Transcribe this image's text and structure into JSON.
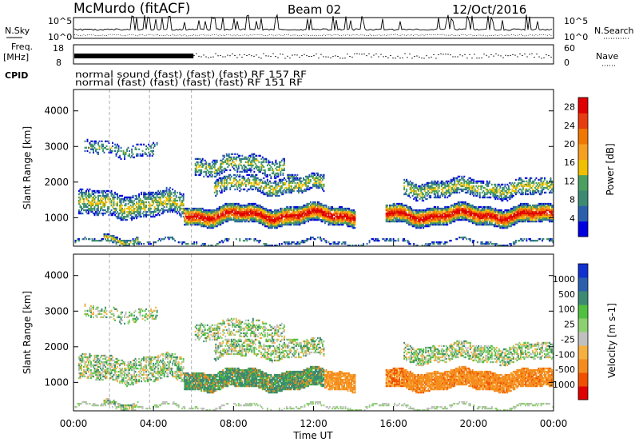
{
  "header": {
    "station": "McMurdo (fitACF)",
    "beam": "Beam 02",
    "date": "12/Oct/2016"
  },
  "strip": {
    "nsky_label": "N.Sky",
    "nsearch_label": "N.Search",
    "nsky_ticks": [
      "10^5",
      "10^0"
    ],
    "freq_label": "Freq.",
    "freq_unit": "[MHz]",
    "freq_ticks": [
      "18",
      "8"
    ],
    "nave_label": "Nave",
    "nave_ticks": [
      "60",
      "0"
    ],
    "cpid_label": "CPID",
    "cpid_line1": "normal sound (fast) (fast) (fast) RF 157 RF",
    "cpid_line2": "normal (fast) (fast) (fast) (fast) RF 151 RF"
  },
  "colors": {
    "power_scale": [
      "#0000e0",
      "#2b5fae",
      "#3c8a72",
      "#4aa060",
      "#f0c000",
      "#f5a020",
      "#f07800",
      "#e83c10",
      "#e00000"
    ],
    "velocity_scale": [
      "#e00000",
      "#f05000",
      "#f58c1e",
      "#f5b040",
      "#c0c0c0",
      "#8cd070",
      "#50c040",
      "#3c8a72",
      "#2b5fae",
      "#1030d0"
    ]
  },
  "chart_data": [
    {
      "type": "heatmap",
      "panel": "power",
      "ylabel": "Slant Range [km]",
      "xlabel": "Time UT",
      "x_ticks": [
        "00:00",
        "04:00",
        "08:00",
        "12:00",
        "16:00",
        "20:00",
        "00:00"
      ],
      "xlim_hours": [
        0,
        24
      ],
      "y_ticks": [
        1000,
        2000,
        3000,
        4000
      ],
      "ylim": [
        200,
        4600
      ],
      "colorbar_label": "Power [dB]",
      "colorbar_ticks": [
        "4",
        "8",
        "12",
        "16",
        "20",
        "24",
        "28"
      ],
      "colorbar_range": [
        0,
        30
      ]
    },
    {
      "type": "heatmap",
      "panel": "velocity",
      "ylabel": "Slant Range [km]",
      "xlabel": "Time UT",
      "x_ticks": [
        "00:00",
        "04:00",
        "08:00",
        "12:00",
        "16:00",
        "20:00",
        "00:00"
      ],
      "xlim_hours": [
        0,
        24
      ],
      "y_ticks": [
        1000,
        2000,
        3000,
        4000
      ],
      "ylim": [
        200,
        4600
      ],
      "colorbar_label": "Velocity [m s-1]",
      "colorbar_ticks": [
        "1000",
        "500",
        "100",
        "25",
        "-25",
        "-100",
        "-500",
        "-1000"
      ]
    }
  ]
}
